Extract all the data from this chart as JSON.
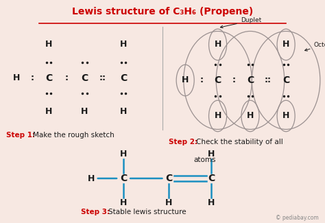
{
  "title": "Lewis structure of C₃H₆ (Propene)",
  "bg_color": "#f7e8e2",
  "title_color": "#cc0000",
  "step1_label": "Step 1:",
  "step1_text": "Make the rough sketch",
  "step2_label": "Step 2:",
  "step2_text": "Check the stability of all\natoms",
  "step3_label": "Step 3:",
  "step3_text": "Stable lewis structure",
  "bond_color": "#1a8fc1",
  "black": "#1a1a1a",
  "ellipse_color": "#c8b8b0",
  "watermark": "© pediabay.com",
  "underline_color": "#cc0000"
}
